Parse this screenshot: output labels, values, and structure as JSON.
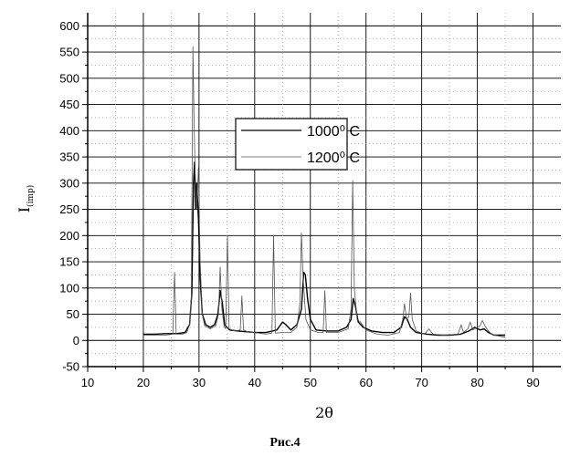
{
  "chart_data": {
    "type": "line",
    "xlabel": "2θ",
    "ylabel": {
      "main": "I",
      "sub": "(imp)"
    },
    "xlim": [
      10,
      95
    ],
    "ylim": [
      -50,
      625
    ],
    "x_ticks": [
      10,
      20,
      30,
      40,
      50,
      60,
      70,
      80,
      90
    ],
    "y_ticks": [
      -50,
      0,
      50,
      100,
      150,
      200,
      250,
      300,
      350,
      400,
      450,
      500,
      550,
      600
    ],
    "grid": true,
    "legend_position": "center",
    "series": [
      {
        "name": "1000⁰ C",
        "color": "#000000",
        "points": [
          [
            20,
            12
          ],
          [
            22,
            12
          ],
          [
            24,
            13
          ],
          [
            26,
            13
          ],
          [
            27.5,
            15
          ],
          [
            28.3,
            30
          ],
          [
            28.7,
            90
          ],
          [
            29.0,
            300
          ],
          [
            29.2,
            340
          ],
          [
            29.4,
            250
          ],
          [
            29.6,
            300
          ],
          [
            29.9,
            230
          ],
          [
            30.2,
            120
          ],
          [
            30.6,
            50
          ],
          [
            31.2,
            30
          ],
          [
            32,
            25
          ],
          [
            32.8,
            30
          ],
          [
            33.4,
            50
          ],
          [
            33.8,
            95
          ],
          [
            34.2,
            70
          ],
          [
            34.6,
            30
          ],
          [
            35.5,
            20
          ],
          [
            37,
            18
          ],
          [
            40,
            15
          ],
          [
            42,
            15
          ],
          [
            44,
            20
          ],
          [
            45,
            35
          ],
          [
            45.6,
            30
          ],
          [
            46.5,
            20
          ],
          [
            47.6,
            30
          ],
          [
            48.4,
            60
          ],
          [
            48.8,
            130
          ],
          [
            49.1,
            125
          ],
          [
            49.5,
            80
          ],
          [
            50,
            40
          ],
          [
            51,
            20
          ],
          [
            53,
            18
          ],
          [
            55,
            18
          ],
          [
            56.5,
            25
          ],
          [
            57.3,
            40
          ],
          [
            57.7,
            80
          ],
          [
            58.1,
            65
          ],
          [
            58.6,
            35
          ],
          [
            59.5,
            25
          ],
          [
            61,
            18
          ],
          [
            63,
            15
          ],
          [
            65,
            15
          ],
          [
            66.3,
            25
          ],
          [
            66.9,
            45
          ],
          [
            67.4,
            40
          ],
          [
            68,
            25
          ],
          [
            69,
            15
          ],
          [
            71,
            12
          ],
          [
            73,
            10
          ],
          [
            75,
            10
          ],
          [
            77,
            12
          ],
          [
            78.5,
            18
          ],
          [
            79.5,
            25
          ],
          [
            80.5,
            20
          ],
          [
            81.2,
            22
          ],
          [
            82,
            15
          ],
          [
            83,
            10
          ],
          [
            85,
            10
          ]
        ]
      },
      {
        "name": "1200⁰ C",
        "color": "#555555",
        "points": [
          [
            20,
            10
          ],
          [
            22,
            10
          ],
          [
            24,
            10
          ],
          [
            25.3,
            12
          ],
          [
            25.6,
            130
          ],
          [
            25.9,
            12
          ],
          [
            27,
            12
          ],
          [
            27.8,
            15
          ],
          [
            28.3,
            30
          ],
          [
            28.6,
            80
          ],
          [
            28.9,
            560
          ],
          [
            29.1,
            420
          ],
          [
            29.3,
            320
          ],
          [
            29.6,
            250
          ],
          [
            29.9,
            330
          ],
          [
            30.2,
            150
          ],
          [
            30.6,
            50
          ],
          [
            31,
            28
          ],
          [
            32,
            22
          ],
          [
            33,
            28
          ],
          [
            33.5,
            50
          ],
          [
            33.8,
            140
          ],
          [
            34.1,
            60
          ],
          [
            34.5,
            28
          ],
          [
            34.8,
            22
          ],
          [
            35.1,
            200
          ],
          [
            35.4,
            22
          ],
          [
            36.5,
            18
          ],
          [
            37.4,
            20
          ],
          [
            37.7,
            85
          ],
          [
            38,
            20
          ],
          [
            39,
            15
          ],
          [
            40,
            15
          ],
          [
            42,
            12
          ],
          [
            43.1,
            14
          ],
          [
            43.4,
            200
          ],
          [
            43.7,
            14
          ],
          [
            45,
            15
          ],
          [
            46.5,
            15
          ],
          [
            47.6,
            25
          ],
          [
            48.1,
            70
          ],
          [
            48.4,
            205
          ],
          [
            48.7,
            120
          ],
          [
            49.2,
            40
          ],
          [
            50,
            20
          ],
          [
            51.5,
            15
          ],
          [
            52.3,
            15
          ],
          [
            52.6,
            95
          ],
          [
            52.9,
            15
          ],
          [
            55,
            15
          ],
          [
            56.8,
            22
          ],
          [
            57.3,
            60
          ],
          [
            57.6,
            305
          ],
          [
            57.9,
            100
          ],
          [
            58.4,
            40
          ],
          [
            59,
            35
          ],
          [
            60,
            20
          ],
          [
            62,
            12
          ],
          [
            64,
            10
          ],
          [
            66,
            15
          ],
          [
            66.6,
            40
          ],
          [
            66.9,
            70
          ],
          [
            67.3,
            40
          ],
          [
            67.7,
            45
          ],
          [
            68,
            90
          ],
          [
            68.3,
            40
          ],
          [
            69,
            18
          ],
          [
            70.5,
            12
          ],
          [
            71.3,
            22
          ],
          [
            72,
            12
          ],
          [
            74,
            10
          ],
          [
            76.5,
            12
          ],
          [
            77.1,
            30
          ],
          [
            77.5,
            15
          ],
          [
            78.3,
            22
          ],
          [
            78.7,
            35
          ],
          [
            79.2,
            20
          ],
          [
            80.5,
            28
          ],
          [
            80.9,
            38
          ],
          [
            81.5,
            25
          ],
          [
            82.5,
            12
          ],
          [
            84,
            8
          ],
          [
            85,
            6
          ]
        ]
      }
    ]
  },
  "caption": "Рис.4"
}
